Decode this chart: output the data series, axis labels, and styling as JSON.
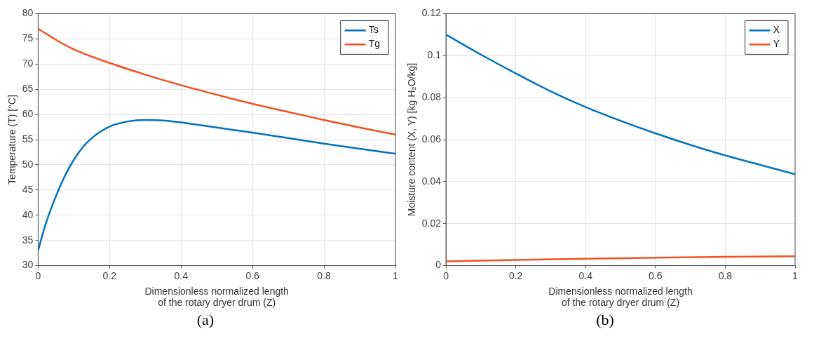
{
  "chart_data": [
    {
      "type": "line",
      "xlabel": "Dimensionless normalized length\nof the rotary dryer drum (Z)",
      "ylabel": "Temperature (T) [°C]",
      "annotations": [
        "(a)"
      ],
      "xlim": [
        0,
        1
      ],
      "xticks": [
        0,
        0.2,
        0.4,
        0.6,
        0.8,
        1
      ],
      "ylim": [
        30,
        80
      ],
      "yticks": [
        30,
        35,
        40,
        45,
        50,
        55,
        60,
        65,
        70,
        75,
        80
      ],
      "grid": true,
      "legend": "top right",
      "series": [
        {
          "name": "Ts",
          "color": "#0072bd",
          "x": [
            0,
            0.02,
            0.04,
            0.06,
            0.08,
            0.1,
            0.125,
            0.15,
            0.175,
            0.2,
            0.25,
            0.3,
            0.35,
            0.4,
            0.5,
            0.6,
            0.7,
            0.8,
            0.9,
            1
          ],
          "values": [
            33,
            38,
            42,
            45.5,
            48.5,
            51,
            53.5,
            55.3,
            56.6,
            57.6,
            58.6,
            58.9,
            58.8,
            58.4,
            57.4,
            56.4,
            55.3,
            54.2,
            53.2,
            52.2
          ]
        },
        {
          "name": "Tg",
          "color": "#f4511e",
          "x": [
            0,
            0.05,
            0.1,
            0.2,
            0.3,
            0.4,
            0.5,
            0.6,
            0.7,
            0.8,
            0.9,
            1
          ],
          "values": [
            77,
            74.8,
            72.9,
            70.2,
            67.9,
            65.8,
            63.9,
            62.1,
            60.5,
            58.9,
            57.4,
            56
          ]
        }
      ]
    },
    {
      "type": "line",
      "xlabel": "Dimensionless normalized length\nof the rotary dryer drum (Z)",
      "ylabel": "Moisture content (X, Y) [kg H₂O/kg]",
      "annotations": [
        "(b)"
      ],
      "xlim": [
        0,
        1
      ],
      "xticks": [
        0,
        0.2,
        0.4,
        0.6,
        0.8,
        1
      ],
      "ylim": [
        0,
        0.12
      ],
      "yticks": [
        0,
        0.02,
        0.04,
        0.06,
        0.08,
        0.1,
        0.12
      ],
      "grid": true,
      "legend": "top right",
      "series": [
        {
          "name": "X",
          "color": "#0072bd",
          "x": [
            0,
            0.1,
            0.2,
            0.3,
            0.4,
            0.5,
            0.6,
            0.7,
            0.8,
            0.9,
            1
          ],
          "values": [
            0.11,
            0.1005,
            0.0915,
            0.083,
            0.0755,
            0.069,
            0.063,
            0.0575,
            0.0525,
            0.048,
            0.0435
          ]
        },
        {
          "name": "Y",
          "color": "#f4511e",
          "x": [
            0,
            0.2,
            0.4,
            0.6,
            0.8,
            1
          ],
          "values": [
            0.002,
            0.0027,
            0.0033,
            0.0038,
            0.0042,
            0.0045
          ]
        }
      ]
    }
  ]
}
